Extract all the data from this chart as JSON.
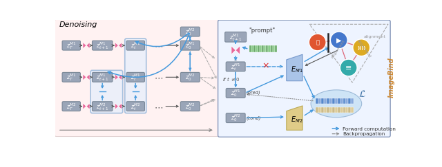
{
  "title": "Denoising",
  "pink_color": "#e8679a",
  "blue_color": "#4499dd",
  "gray_box": "#9aa5b8",
  "gray_box_light": "#b8c0cc",
  "bg_left": "#fff0f0",
  "bg_right": "#eef4ff",
  "green_bar": "#7ab87a",
  "yellow_bar": "#d4b86a",
  "blob_color": "#c8e4f4",
  "legend_forward": "Forward computation",
  "legend_back": "Backpropagation",
  "imagebind_color": "#cc8833"
}
